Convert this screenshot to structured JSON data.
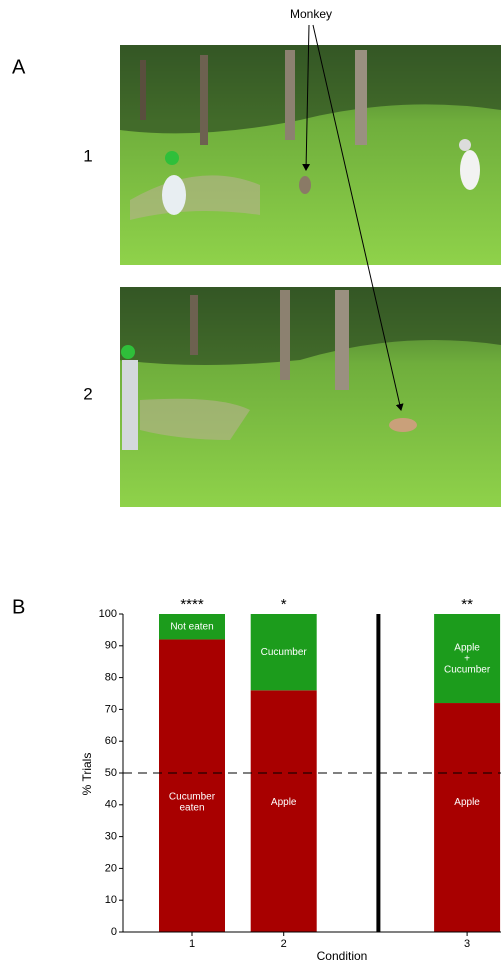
{
  "panel_a": {
    "label": "A",
    "annotation": "Monkey",
    "rows": [
      "1",
      "2"
    ]
  },
  "panel_b": {
    "label": "B"
  },
  "chart_data": {
    "type": "stacked_bar",
    "categories": [
      "1",
      "2",
      null,
      "3"
    ],
    "x_label": "Condition",
    "y_label": "% Trials",
    "ylim": [
      0,
      100
    ],
    "yticks": [
      0,
      10,
      20,
      30,
      40,
      50,
      60,
      70,
      80,
      90,
      100
    ],
    "reference_line": 50,
    "annotations": [
      "****",
      "*",
      null,
      "**"
    ],
    "series": [
      {
        "color": "#a80000",
        "values": [
          92,
          76,
          null,
          72
        ],
        "segment_labels": [
          "Cucumber\neaten",
          "Apple",
          null,
          "Apple"
        ]
      },
      {
        "color": "#1c9c1c",
        "values": [
          8,
          24,
          null,
          28
        ],
        "segment_labels": [
          "Not eaten",
          "Cucumber",
          null,
          "Apple\n+\nCucumber"
        ]
      }
    ]
  }
}
